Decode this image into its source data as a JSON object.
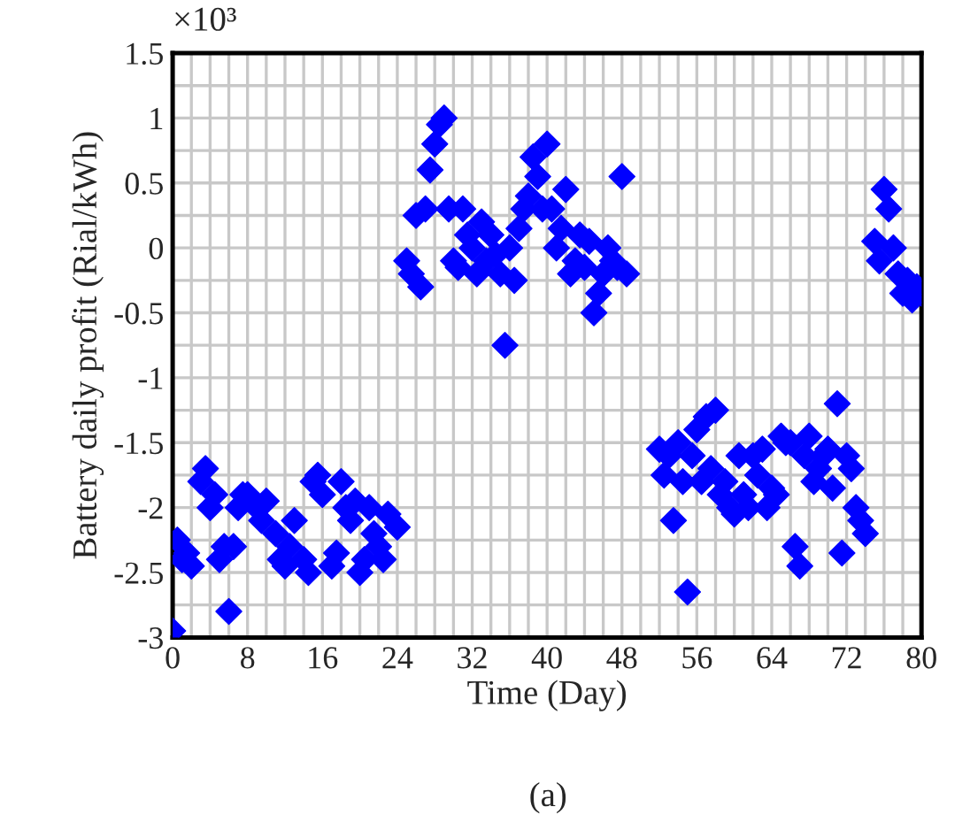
{
  "chart_data": {
    "type": "scatter",
    "xlabel": "Time (Day)",
    "ylabel": "Battery daily profit (Rial/kWh)",
    "annotations": [
      "×10³",
      "(a)"
    ],
    "xlim": [
      0,
      80
    ],
    "xticks": [
      0,
      8,
      16,
      24,
      32,
      40,
      48,
      56,
      64,
      72,
      80
    ],
    "ylim": [
      -3,
      1.5
    ],
    "yticks": [
      -3,
      -2.5,
      -2,
      -1.5,
      -1,
      -0.5,
      0,
      0.5,
      1,
      1.5
    ],
    "grid": true,
    "marker": "diamond",
    "legend": false,
    "series": [
      {
        "color": "#0000ff",
        "x": [
          0,
          0.5,
          1,
          1.5,
          2,
          3,
          3.5,
          4,
          4.5,
          5,
          5.5,
          6,
          6.5,
          7,
          7.5,
          8,
          9,
          9.5,
          10,
          11,
          11.5,
          12,
          12.5,
          13,
          14,
          14.5,
          15,
          15.5,
          16,
          17,
          17.5,
          18,
          18.5,
          19,
          19.5,
          20,
          20.5,
          21,
          21.5,
          22,
          22.5,
          23,
          24,
          25,
          25.5,
          26,
          26.5,
          27,
          27.5,
          28,
          28.5,
          29,
          29.5,
          30,
          30.5,
          31,
          31.5,
          32,
          32.5,
          33,
          33.5,
          34,
          34.5,
          35,
          35.5,
          36,
          36.5,
          37,
          37.5,
          38,
          38.5,
          39,
          39.5,
          40,
          40.5,
          41,
          41.5,
          42,
          42.5,
          43,
          43.5,
          44,
          44.5,
          45,
          45.5,
          46,
          46.5,
          47,
          47.5,
          48,
          48.5,
          52,
          52.5,
          53,
          53.5,
          54,
          54.5,
          55,
          55.5,
          56,
          56.5,
          57,
          57.5,
          58,
          58.5,
          59,
          59.5,
          60,
          60.5,
          61,
          61.5,
          62,
          62.5,
          63,
          63.5,
          64,
          64.5,
          65,
          65.5,
          66,
          66.5,
          67,
          67.5,
          68,
          68.5,
          69,
          69.5,
          70,
          70.5,
          71,
          71.5,
          72,
          72.5,
          73,
          73.5,
          74,
          75,
          75.5,
          76,
          76.5,
          77,
          77.5,
          78,
          78.5,
          79,
          79.5,
          80
        ],
        "values": [
          -2.95,
          -2.25,
          -2.4,
          -2.35,
          -2.45,
          -1.8,
          -1.7,
          -2.0,
          -1.9,
          -2.4,
          -2.3,
          -2.8,
          -2.3,
          -2.0,
          -1.9,
          -1.9,
          -2.0,
          -2.1,
          -1.95,
          -2.2,
          -2.4,
          -2.45,
          -2.3,
          -2.1,
          -2.4,
          -2.5,
          -1.8,
          -1.75,
          -1.9,
          -2.45,
          -2.35,
          -1.8,
          -2.0,
          -2.1,
          -1.95,
          -2.5,
          -2.4,
          -2.0,
          -2.2,
          -2.3,
          -2.4,
          -2.05,
          -2.15,
          -0.1,
          -0.2,
          0.25,
          -0.3,
          0.3,
          0.6,
          0.8,
          0.95,
          1.0,
          0.3,
          -0.1,
          -0.15,
          0.3,
          0.1,
          0.0,
          -0.2,
          0.2,
          -0.1,
          0.1,
          -0.05,
          -0.2,
          -0.75,
          0.0,
          -0.25,
          0.15,
          0.3,
          0.4,
          0.7,
          0.55,
          0.3,
          0.8,
          0.3,
          0.0,
          0.15,
          0.45,
          -0.2,
          -0.1,
          0.1,
          -0.15,
          0.05,
          -0.5,
          -0.35,
          -0.2,
          0.0,
          -0.1,
          -0.15,
          0.55,
          -0.2,
          -1.55,
          -1.75,
          -1.6,
          -2.1,
          -1.5,
          -1.8,
          -2.65,
          -1.6,
          -1.4,
          -1.8,
          -1.3,
          -1.7,
          -1.25,
          -1.9,
          -1.8,
          -2.0,
          -2.05,
          -1.6,
          -1.9,
          -2.0,
          -1.6,
          -1.75,
          -1.55,
          -2.0,
          -1.85,
          -1.9,
          -1.45,
          -1.5,
          -1.5,
          -2.3,
          -2.45,
          -1.6,
          -1.45,
          -1.8,
          -1.7,
          -1.6,
          -1.55,
          -1.85,
          -1.2,
          -2.35,
          -1.6,
          -1.7,
          -2.0,
          -2.1,
          -2.2,
          0.05,
          -0.1,
          0.45,
          0.3,
          0.0,
          -0.2,
          -0.35,
          -0.25,
          -0.4,
          -0.3,
          -0.35
        ]
      }
    ]
  }
}
